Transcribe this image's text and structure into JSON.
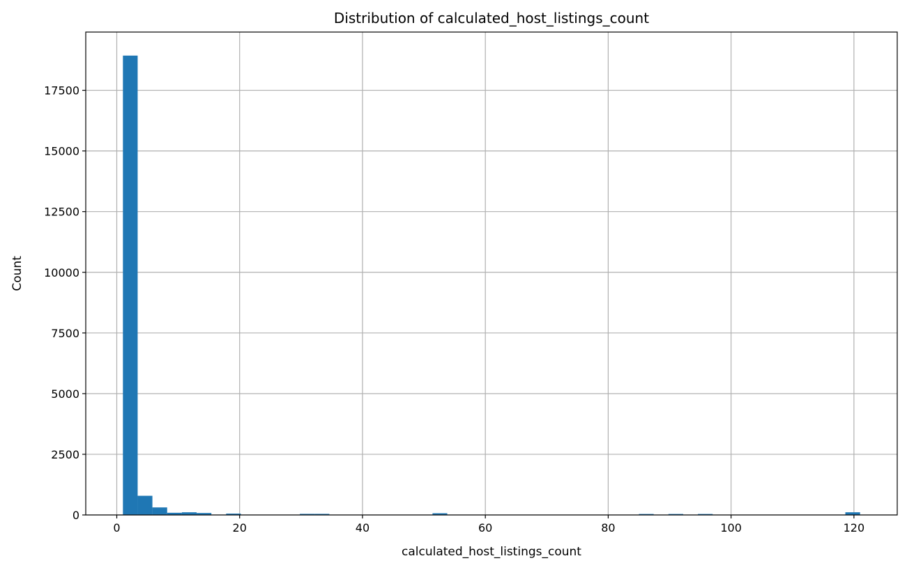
{
  "chart_data": {
    "type": "bar",
    "title": "Distribution of calculated_host_listings_count",
    "xlabel": "calculated_host_listings_count",
    "ylabel": "Count",
    "xlim": [
      -5.05,
      127.05
    ],
    "ylim": [
      0,
      19900
    ],
    "xticks": [
      0,
      20,
      40,
      60,
      80,
      100,
      120
    ],
    "yticks": [
      0,
      2500,
      5000,
      7500,
      10000,
      12500,
      15000,
      17500
    ],
    "grid": true,
    "legend": "none",
    "bar_color": "#1f77b4",
    "bin_start": 1,
    "bin_width": 2.4,
    "counts": [
      18930,
      790,
      310,
      90,
      110,
      80,
      0,
      55,
      0,
      0,
      0,
      0,
      45,
      45,
      0,
      0,
      0,
      0,
      0,
      0,
      0,
      70,
      0,
      0,
      0,
      0,
      0,
      0,
      0,
      0,
      0,
      0,
      0,
      0,
      0,
      40,
      0,
      40,
      0,
      40,
      0,
      0,
      0,
      0,
      0,
      0,
      0,
      0,
      0,
      110
    ]
  }
}
